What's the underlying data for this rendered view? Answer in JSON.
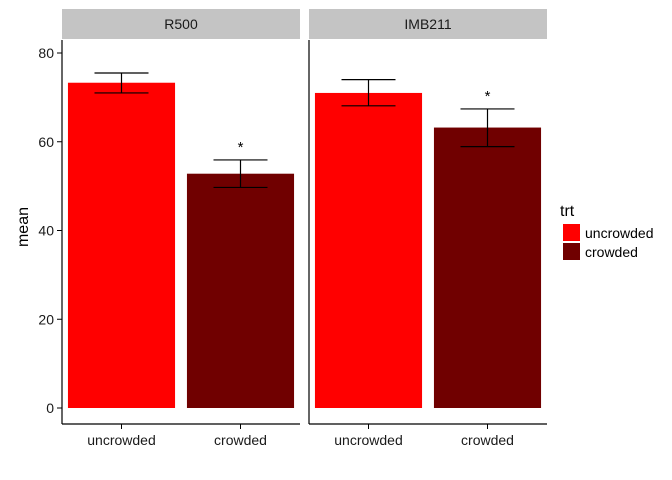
{
  "chart_data": {
    "type": "bar",
    "title": "",
    "xlabel": "",
    "ylabel": "mean",
    "ylim": [
      0,
      80
    ],
    "yticks": [
      0,
      20,
      40,
      60,
      80
    ],
    "categories": [
      "uncrowded",
      "crowded"
    ],
    "grid": false,
    "legend": {
      "title": "trt",
      "position": "right",
      "entries": [
        {
          "label": "uncrowded",
          "color": "#FF0000"
        },
        {
          "label": "crowded",
          "color": "#700000"
        }
      ]
    },
    "panels": [
      {
        "name": "R500",
        "bars": [
          {
            "category": "uncrowded",
            "value": 73.3,
            "err_low": 71.0,
            "err_high": 75.5,
            "annotation": ""
          },
          {
            "category": "crowded",
            "value": 52.8,
            "err_low": 49.7,
            "err_high": 55.9,
            "annotation": "*"
          }
        ]
      },
      {
        "name": "IMB211",
        "bars": [
          {
            "category": "uncrowded",
            "value": 71.0,
            "err_low": 68.1,
            "err_high": 74.0,
            "annotation": ""
          },
          {
            "category": "crowded",
            "value": 63.2,
            "err_low": 58.9,
            "err_high": 67.4,
            "annotation": "*"
          }
        ]
      }
    ]
  }
}
